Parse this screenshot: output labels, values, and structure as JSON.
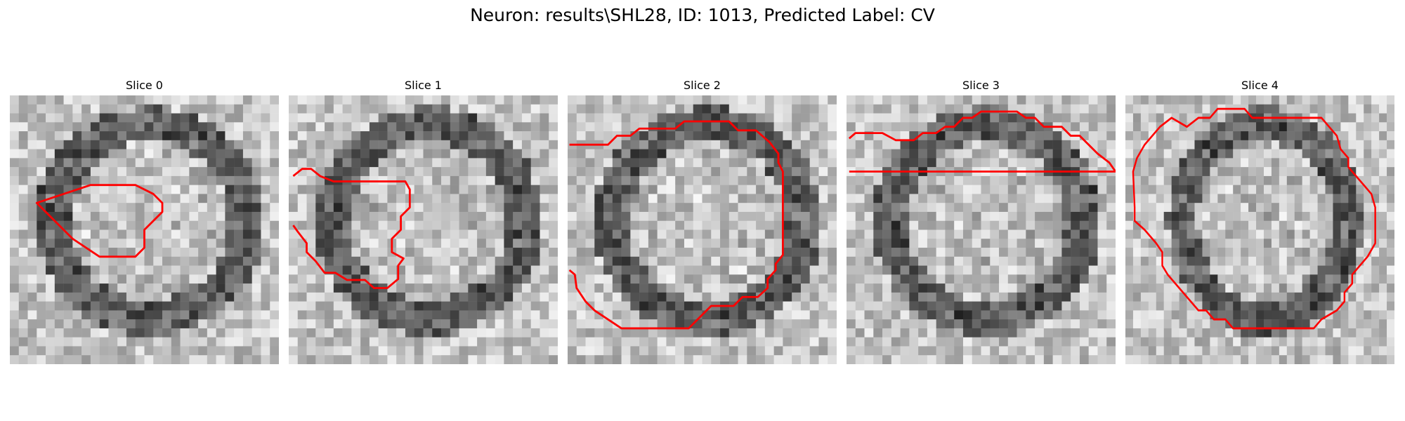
{
  "figure": {
    "title": "Neuron: results\\SHL28, ID: 1013, Predicted Label: CV"
  },
  "contour_color": "#ff0000",
  "slices": [
    {
      "label": "Slice 0",
      "contour": [
        [
          6,
          11
        ],
        [
          9,
          10
        ],
        [
          14,
          10
        ],
        [
          16,
          11
        ],
        [
          17,
          12
        ],
        [
          17,
          13
        ],
        [
          16,
          14
        ],
        [
          15,
          15
        ],
        [
          15,
          17
        ],
        [
          14,
          18
        ],
        [
          10,
          18
        ],
        [
          7,
          16
        ],
        [
          5,
          14
        ],
        [
          4,
          13
        ],
        [
          3,
          12
        ]
      ],
      "closed": true
    },
    {
      "label": "Slice 1",
      "contour": [
        [
          0.5,
          9
        ],
        [
          1.5,
          8.2
        ],
        [
          2.5,
          8.2
        ],
        [
          3.5,
          9
        ],
        [
          5,
          9.6
        ],
        [
          13,
          9.6
        ],
        [
          13.5,
          10.5
        ],
        [
          13.5,
          12.5
        ],
        [
          12.5,
          13.5
        ],
        [
          12.5,
          15
        ],
        [
          11.5,
          16
        ],
        [
          11.5,
          17.5
        ],
        [
          12.8,
          18.2
        ],
        [
          12.2,
          19
        ],
        [
          12.2,
          20.5
        ],
        [
          11,
          21.5
        ],
        [
          9.5,
          21.5
        ],
        [
          8.5,
          20.6
        ],
        [
          6.5,
          20.6
        ],
        [
          5.2,
          19.8
        ],
        [
          4,
          19.8
        ],
        [
          3,
          18.5
        ],
        [
          2,
          17.5
        ],
        [
          2,
          16.5
        ],
        [
          1,
          15.2
        ],
        [
          0.5,
          14.5
        ]
      ],
      "closed": false
    },
    {
      "label": "Slice 2",
      "contour": [
        [
          0.2,
          5.5
        ],
        [
          4.5,
          5.5
        ],
        [
          5.5,
          4.5
        ],
        [
          7,
          4.5
        ],
        [
          8,
          3.7
        ],
        [
          12,
          3.7
        ],
        [
          13,
          2.9
        ],
        [
          18,
          2.9
        ],
        [
          19,
          3.9
        ],
        [
          21,
          3.9
        ],
        [
          22.5,
          5.2
        ],
        [
          23.5,
          6.5
        ],
        [
          23.5,
          7.5
        ],
        [
          24,
          8.5
        ],
        [
          24,
          17.8
        ],
        [
          23.2,
          18.8
        ],
        [
          23.2,
          19.5
        ],
        [
          22.3,
          20.5
        ],
        [
          22.3,
          21.5
        ],
        [
          21.2,
          22.5
        ],
        [
          19.5,
          22.5
        ],
        [
          18.5,
          23.5
        ],
        [
          16,
          23.5
        ],
        [
          15,
          24.5
        ],
        [
          14.5,
          25
        ],
        [
          13.5,
          26
        ],
        [
          6,
          26
        ],
        [
          4.5,
          25
        ],
        [
          3,
          24
        ],
        [
          2,
          23
        ],
        [
          1,
          21.5
        ],
        [
          0.8,
          20
        ],
        [
          0.2,
          19.5
        ]
      ],
      "closed": false
    },
    {
      "label": "Slice 3",
      "contour": [
        [
          0.3,
          4.8
        ],
        [
          1,
          4.2
        ],
        [
          4,
          4.2
        ],
        [
          5.5,
          5
        ],
        [
          7.5,
          5
        ],
        [
          8.5,
          4.2
        ],
        [
          10,
          4.2
        ],
        [
          11,
          3.5
        ],
        [
          12,
          3.5
        ],
        [
          13,
          2.5
        ],
        [
          14,
          2.5
        ],
        [
          15,
          1.8
        ],
        [
          19,
          1.8
        ],
        [
          20,
          2.5
        ],
        [
          21,
          2.5
        ],
        [
          22,
          3.5
        ],
        [
          24,
          3.5
        ],
        [
          25,
          4.5
        ],
        [
          26,
          4.5
        ],
        [
          27,
          5.5
        ],
        [
          28,
          6.5
        ],
        [
          29.3,
          7.5
        ],
        [
          30,
          8.5
        ],
        [
          0.3,
          8.5
        ]
      ],
      "closed": false
    },
    {
      "label": "Slice 4",
      "contour": [
        [
          8,
          3.5
        ],
        [
          9.5,
          2.5
        ],
        [
          11,
          2.5
        ],
        [
          12,
          1.5
        ],
        [
          15.5,
          1.5
        ],
        [
          16.5,
          2.5
        ],
        [
          25.5,
          2.5
        ],
        [
          26.5,
          3.5
        ],
        [
          27.5,
          4.5
        ],
        [
          28,
          6
        ],
        [
          29,
          7
        ],
        [
          29,
          8
        ],
        [
          30,
          9
        ],
        [
          31,
          10
        ],
        [
          32,
          11
        ],
        [
          32.5,
          12.5
        ],
        [
          32.5,
          16.5
        ],
        [
          31.5,
          18
        ],
        [
          30.5,
          19
        ],
        [
          29.5,
          20
        ],
        [
          29.5,
          21
        ],
        [
          28.5,
          22
        ],
        [
          28.5,
          23
        ],
        [
          27.5,
          24
        ],
        [
          26.5,
          24.5
        ],
        [
          25.5,
          25
        ],
        [
          24.5,
          26
        ],
        [
          14,
          26
        ],
        [
          13,
          25
        ],
        [
          11.5,
          25
        ],
        [
          10.5,
          24
        ],
        [
          9.5,
          24
        ],
        [
          8.5,
          23
        ],
        [
          7.5,
          22
        ],
        [
          6.5,
          21
        ],
        [
          5.5,
          20
        ],
        [
          4.8,
          19
        ],
        [
          4.8,
          17.5
        ],
        [
          4,
          16.5
        ],
        [
          2.5,
          15
        ],
        [
          1.2,
          14
        ],
        [
          1.2,
          12.5
        ],
        [
          1,
          8.5
        ],
        [
          1.5,
          7
        ],
        [
          2.5,
          5.5
        ],
        [
          3.5,
          4.5
        ],
        [
          4.5,
          3.5
        ],
        [
          6,
          2.5
        ]
      ],
      "closed": true
    }
  ]
}
